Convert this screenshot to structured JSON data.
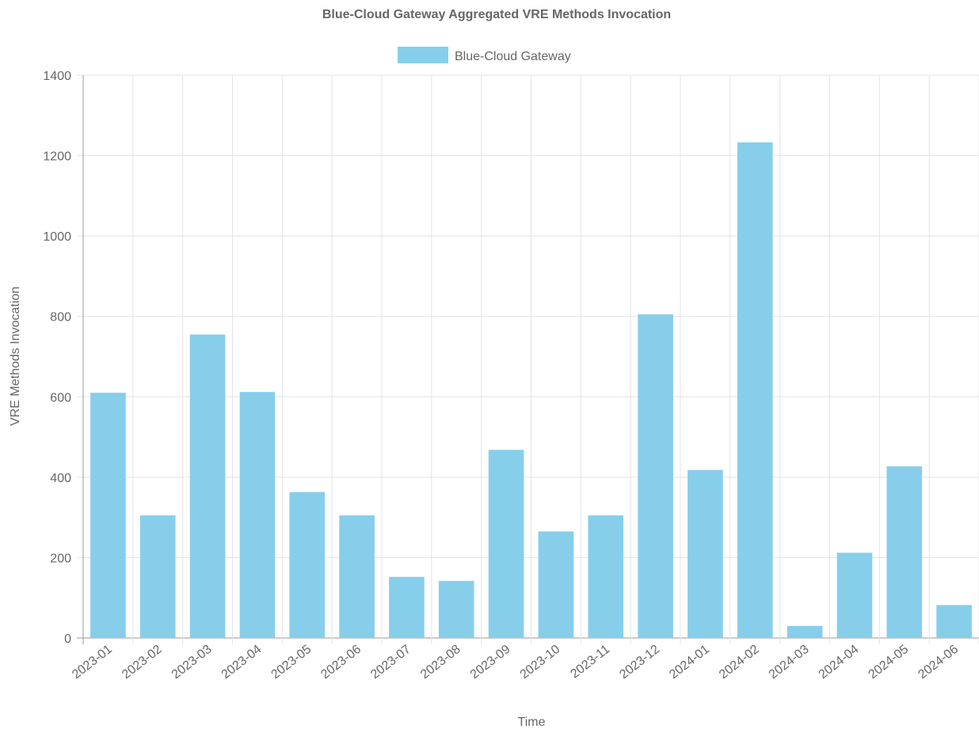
{
  "chart_data": {
    "type": "bar",
    "title": "Blue-Cloud Gateway Aggregated VRE Methods Invocation",
    "xlabel": "Time",
    "ylabel": "VRE Methods Invocation",
    "categories": [
      "2023-01",
      "2023-02",
      "2023-03",
      "2023-04",
      "2023-05",
      "2023-06",
      "2023-07",
      "2023-08",
      "2023-09",
      "2023-10",
      "2023-11",
      "2023-12",
      "2024-01",
      "2024-02",
      "2024-03",
      "2024-04",
      "2024-05",
      "2024-06"
    ],
    "series": [
      {
        "name": "Blue-Cloud Gateway",
        "color": "#87CEEB",
        "values": [
          610,
          305,
          755,
          612,
          363,
          305,
          152,
          142,
          468,
          265,
          305,
          805,
          418,
          1233,
          30,
          212,
          427,
          82
        ]
      }
    ],
    "ylim": [
      0,
      1400
    ],
    "yticks": [
      0,
      200,
      400,
      600,
      800,
      1000,
      1200,
      1400
    ],
    "grid": true,
    "legend_position": "top"
  }
}
